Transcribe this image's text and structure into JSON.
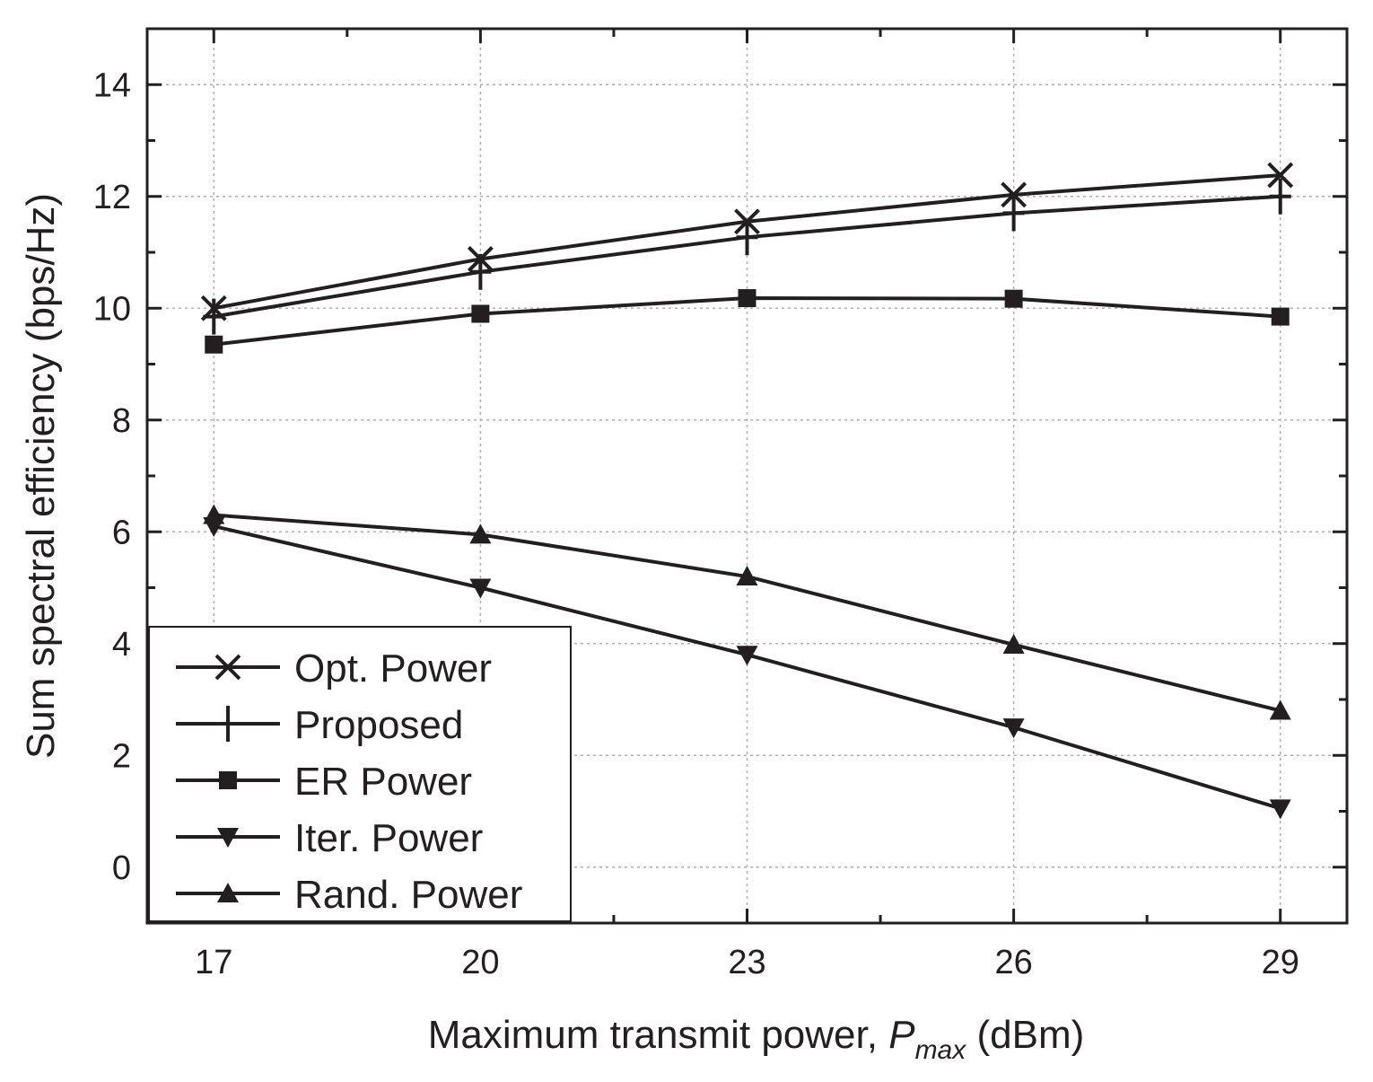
{
  "chart_data": {
    "type": "line",
    "title": "",
    "xlabel": {
      "prefix": "Maximum transmit power, ",
      "symbol": "P",
      "subscript": "max",
      "suffix": " (dBm)"
    },
    "ylabel": "Sum spectral efficiency (bps/Hz)",
    "x": [
      17,
      20,
      23,
      26,
      29
    ],
    "xticks": [
      "17",
      "20",
      "23",
      "26",
      "29"
    ],
    "yticks": [
      "0",
      "2",
      "4",
      "6",
      "8",
      "10",
      "12",
      "14"
    ],
    "xlim": [
      16.25,
      29.75
    ],
    "ylim": [
      -1,
      15
    ],
    "grid": true,
    "legend_position": "bottom-left",
    "series": [
      {
        "name": "Opt. Power",
        "marker": "x",
        "values": [
          10.0,
          10.88,
          11.55,
          12.03,
          12.38
        ]
      },
      {
        "name": "Proposed",
        "marker": "plus",
        "values": [
          9.85,
          10.65,
          11.27,
          11.7,
          12.0
        ]
      },
      {
        "name": "ER Power",
        "marker": "square",
        "values": [
          9.35,
          9.9,
          10.18,
          10.17,
          9.85
        ]
      },
      {
        "name": "Iter. Power",
        "marker": "triangle-down",
        "values": [
          6.1,
          5.0,
          3.8,
          2.5,
          1.05
        ]
      },
      {
        "name": "Rand. Power",
        "marker": "triangle-up",
        "values": [
          6.3,
          5.95,
          5.2,
          3.98,
          2.8
        ]
      }
    ],
    "colors": {
      "line": "#231f20",
      "grid": "#b0b0b0",
      "background": "#ffffff"
    }
  }
}
